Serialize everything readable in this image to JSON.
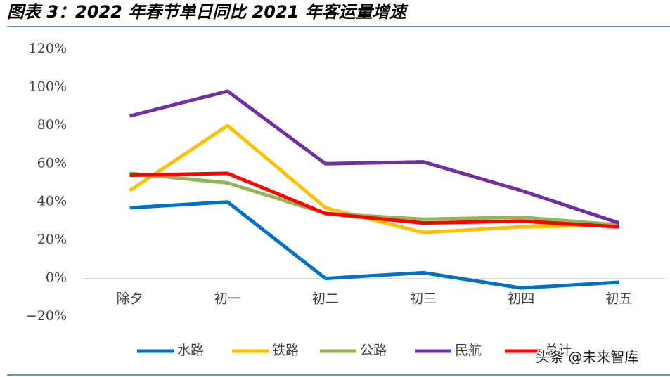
{
  "chart_data": {
    "type": "line",
    "title": "图表 3：2022 年春节单日同比 2021 年客运量增速",
    "categories": [
      "除夕",
      "初一",
      "初二",
      "初三",
      "初四",
      "初五"
    ],
    "series": [
      {
        "name": "水路",
        "color": "#0070c0",
        "values": [
          37,
          40,
          0,
          3,
          -5,
          -2
        ]
      },
      {
        "name": "铁路",
        "color": "#ffc000",
        "values": [
          46,
          80,
          37,
          24,
          27,
          28
        ]
      },
      {
        "name": "公路",
        "color": "#92b45a",
        "values": [
          55,
          50,
          34,
          31,
          32,
          28
        ]
      },
      {
        "name": "民航",
        "color": "#7030a0",
        "values": [
          85,
          98,
          60,
          61,
          46,
          29
        ]
      },
      {
        "name": "总计",
        "color": "#ff0000",
        "values": [
          54,
          55,
          34,
          29,
          30,
          27
        ]
      }
    ],
    "ylim": [
      -20,
      120
    ],
    "yticks": [
      {
        "value": -20,
        "label": "−20%"
      },
      {
        "value": 0,
        "label": "0%"
      },
      {
        "value": 20,
        "label": "20%"
      },
      {
        "value": 40,
        "label": "40%"
      },
      {
        "value": 60,
        "label": "60%"
      },
      {
        "value": 80,
        "label": "80%"
      },
      {
        "value": 100,
        "label": "100%"
      },
      {
        "value": 120,
        "label": "120%"
      }
    ],
    "legend": "bottom",
    "watermark": "头条 @未来智库"
  }
}
